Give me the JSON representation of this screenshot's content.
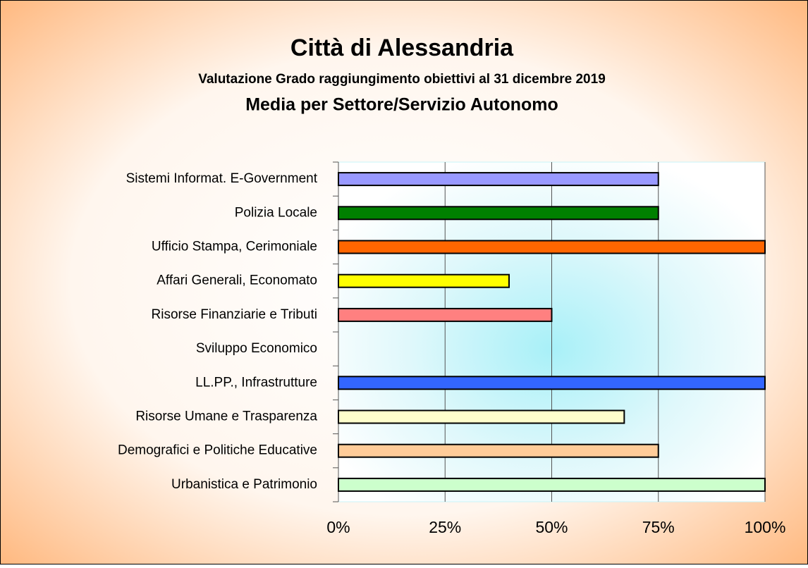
{
  "chart_data": {
    "type": "hbar",
    "title": "Città di Alessandria",
    "subtitle": "Valutazione Grado raggiungimento obiettivi al 31 dicembre 2019",
    "subtitle2": "Media per Settore/Servizio Autonomo",
    "categories": [
      "Sistemi Informat. E-Government",
      "Polizia Locale",
      "Ufficio Stampa, Cerimoniale",
      "Affari Generali, Economato",
      "Risorse Finanziarie e Tributi",
      "Sviluppo Economico",
      "LL.PP., Infrastrutture",
      "Risorse Umane e Trasparenza",
      "Demografici e Politiche Educative",
      "Urbanistica e Patrimonio"
    ],
    "values": [
      75,
      75,
      100,
      40,
      50,
      null,
      100,
      67,
      75,
      100
    ],
    "colors": [
      "#9999ff",
      "#008000",
      "#ff6600",
      "#ffff00",
      "#ff8080",
      null,
      "#3366ff",
      "#ffffcc",
      "#ffcc99",
      "#ccffcc"
    ],
    "xlim": [
      0,
      100
    ],
    "xticks": [
      {
        "value": 0,
        "label": "0%"
      },
      {
        "value": 25,
        "label": "25%"
      },
      {
        "value": 50,
        "label": "50%"
      },
      {
        "value": 75,
        "label": "75%"
      },
      {
        "value": 100,
        "label": "100%"
      }
    ],
    "grid": true
  }
}
